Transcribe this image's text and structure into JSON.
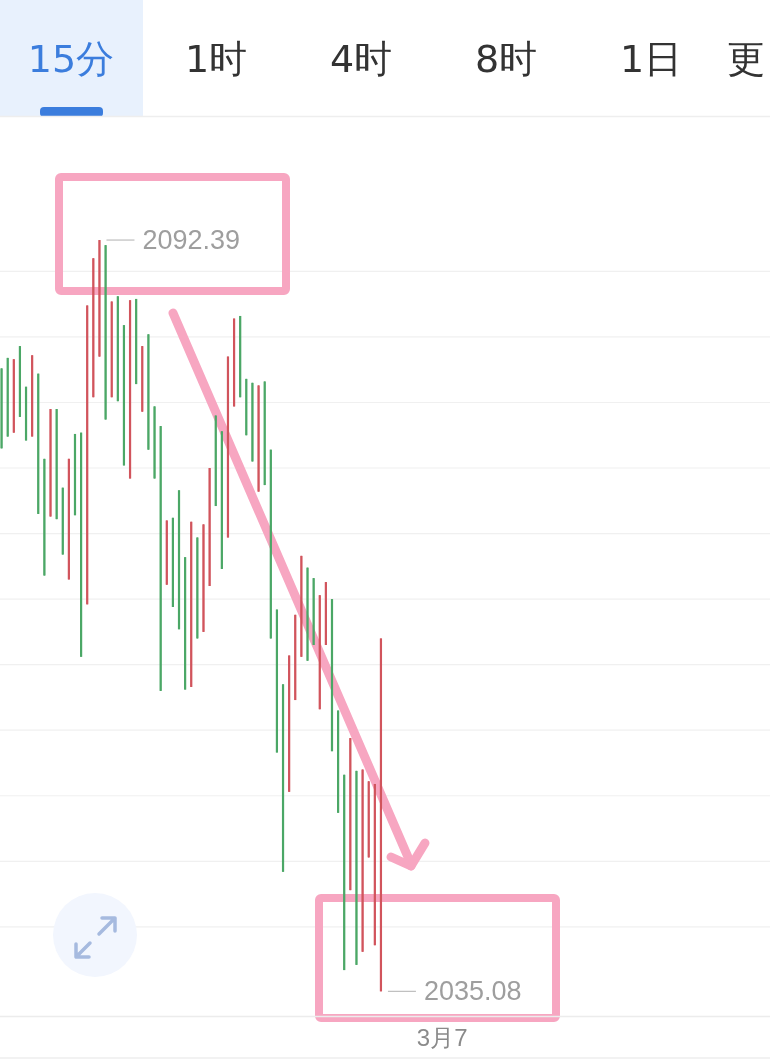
{
  "chart_data": {
    "type": "candlestick",
    "categories": [
      null,
      null,
      null,
      null,
      null,
      null,
      null,
      null,
      null,
      null,
      null,
      null,
      null,
      null,
      null,
      null,
      null,
      null,
      null,
      null,
      null,
      null,
      null,
      null,
      null,
      null,
      null,
      null,
      null,
      null,
      null,
      null,
      null,
      null,
      null,
      null,
      null,
      null,
      null,
      null,
      null,
      null,
      null,
      null,
      null,
      null,
      null,
      null,
      null,
      null,
      null,
      null,
      null,
      null,
      null,
      null,
      null,
      null,
      null,
      null,
      null,
      null,
      null,
      null,
      null,
      null,
      null,
      null,
      null,
      null,
      null,
      null,
      "3月7",
      null,
      null,
      null,
      null,
      null,
      null,
      null,
      null,
      null,
      null,
      null,
      null,
      null,
      null,
      null,
      null,
      null,
      null,
      null,
      null,
      null,
      null,
      null,
      null,
      null,
      null,
      null,
      null,
      null,
      null,
      null,
      null,
      null,
      null,
      null,
      null,
      null,
      null,
      null,
      null,
      null,
      null,
      null,
      null,
      null,
      null,
      null,
      null,
      null,
      null,
      null,
      null,
      null
    ],
    "ohlc": [
      [
        2082.6,
        2082.6,
        2076.5,
        2076.5
      ],
      [
        2083.4,
        2083.4,
        2077.4,
        2077.4
      ],
      [
        2077.7,
        2083.3,
        2077.7,
        2083.3
      ],
      [
        2084.3,
        2084.3,
        2078.9,
        2078.9
      ],
      [
        2081.2,
        2081.2,
        2077.1,
        2077.1
      ],
      [
        2077.4,
        2083.6,
        2077.4,
        2083.6
      ],
      [
        2082.2,
        2082.2,
        2071.5,
        2071.5
      ],
      [
        2075.7,
        2075.7,
        2066.8,
        2066.8
      ],
      [
        2071.3,
        2079.5,
        2071.3,
        2079.5
      ],
      [
        2079.5,
        2079.5,
        2071.1,
        2071.1
      ],
      [
        2073.5,
        2073.5,
        2068.4,
        2068.4
      ],
      [
        2066.5,
        2075.7,
        2066.5,
        2075.7
      ],
      [
        2077.6,
        2077.6,
        2071.4,
        2071.4
      ],
      [
        2077.7,
        2077.7,
        2060.6,
        2060.6
      ],
      [
        2064.6,
        2087.4,
        2064.6,
        2087.4
      ],
      [
        2080.4,
        2091.0,
        2080.4,
        2091.0
      ],
      [
        2083.5,
        2092.39,
        2083.5,
        2092.39
      ],
      [
        2092.0,
        2092.0,
        2078.7,
        2078.7
      ],
      [
        2080.4,
        2087.7,
        2080.4,
        2087.7
      ],
      [
        2088.1,
        2088.1,
        2080.1,
        2080.1
      ],
      [
        2085.9,
        2085.9,
        2075.2,
        2075.2
      ],
      [
        2074.2,
        2087.8,
        2074.2,
        2087.8
      ],
      [
        2087.9,
        2087.9,
        2081.4,
        2081.4
      ],
      [
        2079.3,
        2084.3,
        2079.3,
        2084.3
      ],
      [
        2085.2,
        2085.2,
        2076.4,
        2076.4
      ],
      [
        2079.7,
        2079.7,
        2074.2,
        2074.2
      ],
      [
        2078.2,
        2078.2,
        2058.0,
        2058.0
      ],
      [
        2066.1,
        2071.0,
        2066.1,
        2071.0
      ],
      [
        2071.2,
        2071.2,
        2064.4,
        2064.4
      ],
      [
        2073.3,
        2073.3,
        2062.7,
        2062.7
      ],
      [
        2068.2,
        2068.2,
        2058.1,
        2058.1
      ],
      [
        2058.3,
        2070.9,
        2058.3,
        2070.9
      ],
      [
        2069.7,
        2069.7,
        2062.0,
        2062.0
      ],
      [
        2062.5,
        2070.7,
        2062.5,
        2070.7
      ],
      [
        2066.0,
        2075.0,
        2066.0,
        2075.0
      ],
      [
        2079.0,
        2079.0,
        2072.1,
        2072.1
      ],
      [
        2077.8,
        2077.8,
        2067.3,
        2067.3
      ],
      [
        2069.7,
        2083.5,
        2069.7,
        2083.5
      ],
      [
        2079.7,
        2086.4,
        2079.7,
        2086.4
      ],
      [
        2086.6,
        2086.6,
        2080.4,
        2080.4
      ],
      [
        2081.8,
        2081.8,
        2077.5,
        2077.5
      ],
      [
        2081.5,
        2081.5,
        2075.5,
        2075.5
      ],
      [
        2073.2,
        2081.3,
        2073.2,
        2081.3
      ],
      [
        2081.6,
        2081.6,
        2073.7,
        2073.7
      ],
      [
        2076.4,
        2076.4,
        2062.0,
        2062.0
      ],
      [
        2064.2,
        2064.2,
        2053.3,
        2053.3
      ],
      [
        2058.5,
        2058.5,
        2044.2,
        2044.2
      ],
      [
        2050.3,
        2060.7,
        2050.3,
        2060.7
      ],
      [
        2057.3,
        2063.8,
        2057.3,
        2063.8
      ],
      [
        2060.6,
        2068.3,
        2060.6,
        2068.3
      ],
      [
        2067.4,
        2067.4,
        2060.3,
        2060.3
      ],
      [
        2066.6,
        2066.6,
        2061.5,
        2061.5
      ],
      [
        2056.6,
        2065.3,
        2056.6,
        2065.3
      ],
      [
        2061.5,
        2066.3,
        2061.5,
        2066.3
      ],
      [
        2065.0,
        2065.0,
        2053.4,
        2053.4
      ],
      [
        2056.5,
        2056.5,
        2048.7,
        2048.7
      ],
      [
        2051.6,
        2051.6,
        2036.7,
        2036.7
      ],
      [
        2042.8,
        2054.4,
        2042.8,
        2054.4
      ],
      [
        2051.9,
        2051.9,
        2037.1,
        2037.1
      ],
      [
        2038.1,
        2052.0,
        2038.1,
        2052.0
      ],
      [
        2045.3,
        2051.1,
        2045.3,
        2051.1
      ],
      [
        2038.6,
        2050.9,
        2038.6,
        2050.9
      ],
      [
        2035.08,
        2062.0,
        2035.08,
        2062.0
      ],
      null,
      null,
      null,
      null,
      null,
      null,
      null,
      null,
      null,
      null,
      null,
      null,
      null,
      null,
      null,
      null,
      null,
      null,
      null,
      null,
      null,
      null,
      null,
      null,
      null,
      null,
      null,
      null,
      null,
      null,
      null,
      null,
      null,
      null,
      null,
      null,
      null,
      null,
      null,
      null,
      null,
      null,
      null,
      null,
      null,
      null,
      null,
      null,
      null,
      null,
      null,
      null,
      null,
      null,
      null,
      null,
      null,
      null,
      null,
      null,
      null,
      null,
      null
    ],
    "colors": [
      "#4ba766",
      "#4ba766",
      "#d1545c",
      "#4ba766",
      "#4ba766",
      "#d1545c",
      "#4ba766",
      "#4ba766",
      "#d1545c",
      "#4ba766",
      "#4ba766",
      "#d1545c",
      "#4ba766",
      "#4ba766",
      "#d1545c",
      "#d1545c",
      "#d1545c",
      "#4ba766",
      "#d1545c",
      "#4ba766",
      "#4ba766",
      "#d1545c",
      "#4ba766",
      "#d1545c",
      "#4ba766",
      "#4ba766",
      "#4ba766",
      "#d1545c",
      "#4ba766",
      "#4ba766",
      "#4ba766",
      "#d1545c",
      "#4ba766",
      "#d1545c",
      "#d1545c",
      "#4ba766",
      "#4ba766",
      "#d1545c",
      "#d1545c",
      "#4ba766",
      "#4ba766",
      "#4ba766",
      "#d1545c",
      "#4ba766",
      "#4ba766",
      "#4ba766",
      "#4ba766",
      "#d1545c",
      "#d1545c",
      "#d1545c",
      "#4ba766",
      "#4ba766",
      "#d1545c",
      "#d1545c",
      "#4ba766",
      "#4ba766",
      "#4ba766",
      "#d1545c",
      "#4ba766",
      "#d1545c",
      "#d1545c",
      "#d1545c",
      "#d1545c",
      null,
      null,
      null,
      null,
      null,
      null,
      null,
      null,
      null,
      null,
      null,
      null,
      null,
      null,
      null,
      null,
      null,
      null,
      null,
      null,
      null,
      null,
      null,
      null,
      null,
      null,
      null,
      null,
      null,
      null,
      null,
      null,
      null,
      null,
      null,
      null,
      null,
      null,
      null,
      null,
      null,
      null,
      null,
      null,
      null,
      null,
      null,
      null,
      null,
      null,
      null,
      null,
      null,
      null,
      null,
      null,
      null,
      null,
      null,
      null,
      null,
      null,
      null
    ],
    "ylim": [
      2033.2,
      2101.7
    ],
    "yticks": [
      {
        "value": 2040,
        "label": null
      },
      {
        "value": 2045,
        "label": null
      },
      {
        "value": 2050,
        "label": null
      },
      {
        "value": 2055,
        "label": null
      },
      {
        "value": 2060,
        "label": null
      },
      {
        "value": 2065,
        "label": null
      },
      {
        "value": 2070,
        "label": null
      },
      {
        "value": 2075,
        "label": null
      },
      {
        "value": 2080,
        "label": null
      },
      {
        "value": 2085,
        "label": null
      },
      {
        "value": 2090,
        "label": null
      }
    ],
    "grid": "y",
    "tick_labels": "x",
    "annotations": [
      "15分",
      "1时",
      "4时",
      "8时",
      "1日",
      "更",
      "2092.39",
      "2035.08"
    ]
  }
}
